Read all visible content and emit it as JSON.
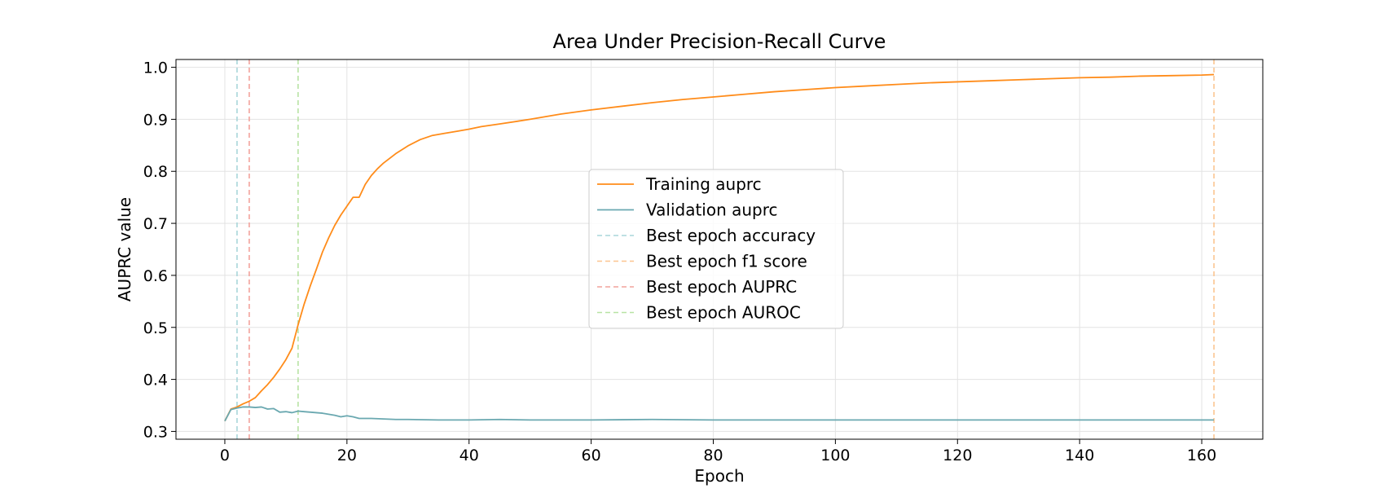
{
  "chart_data": {
    "type": "line",
    "title": "Area Under Precision-Recall Curve",
    "xlabel": "Epoch",
    "ylabel": "AUPRC value",
    "xlim": [
      -8,
      170
    ],
    "ylim": [
      0.285,
      1.015
    ],
    "xticks": [
      0,
      20,
      40,
      60,
      80,
      100,
      120,
      140,
      160
    ],
    "yticks": [
      0.3,
      0.4,
      0.5,
      0.6,
      0.7,
      0.8,
      0.9,
      1.0
    ],
    "grid": true,
    "legend_position": "center",
    "series": [
      {
        "name": "Training auprc",
        "color": "#ff8c1a",
        "style": "solid",
        "points": [
          [
            0,
            0.32
          ],
          [
            1,
            0.343
          ],
          [
            2,
            0.347
          ],
          [
            3,
            0.353
          ],
          [
            4,
            0.358
          ],
          [
            5,
            0.365
          ],
          [
            6,
            0.378
          ],
          [
            7,
            0.39
          ],
          [
            8,
            0.404
          ],
          [
            9,
            0.42
          ],
          [
            10,
            0.438
          ],
          [
            11,
            0.46
          ],
          [
            12,
            0.505
          ],
          [
            13,
            0.545
          ],
          [
            14,
            0.58
          ],
          [
            15,
            0.612
          ],
          [
            16,
            0.645
          ],
          [
            17,
            0.672
          ],
          [
            18,
            0.696
          ],
          [
            19,
            0.716
          ],
          [
            20,
            0.733
          ],
          [
            21,
            0.75
          ],
          [
            22,
            0.75
          ],
          [
            23,
            0.775
          ],
          [
            24,
            0.792
          ],
          [
            25,
            0.805
          ],
          [
            26,
            0.816
          ],
          [
            28,
            0.834
          ],
          [
            30,
            0.849
          ],
          [
            32,
            0.861
          ],
          [
            34,
            0.869
          ],
          [
            36,
            0.873
          ],
          [
            38,
            0.877
          ],
          [
            40,
            0.881
          ],
          [
            42,
            0.886
          ],
          [
            45,
            0.891
          ],
          [
            50,
            0.9
          ],
          [
            55,
            0.91
          ],
          [
            60,
            0.918
          ],
          [
            65,
            0.925
          ],
          [
            70,
            0.932
          ],
          [
            75,
            0.938
          ],
          [
            80,
            0.943
          ],
          [
            85,
            0.948
          ],
          [
            90,
            0.953
          ],
          [
            95,
            0.957
          ],
          [
            100,
            0.961
          ],
          [
            105,
            0.964
          ],
          [
            110,
            0.967
          ],
          [
            115,
            0.97
          ],
          [
            120,
            0.972
          ],
          [
            125,
            0.974
          ],
          [
            130,
            0.976
          ],
          [
            135,
            0.978
          ],
          [
            140,
            0.98
          ],
          [
            145,
            0.981
          ],
          [
            150,
            0.983
          ],
          [
            155,
            0.984
          ],
          [
            160,
            0.985
          ],
          [
            162,
            0.986
          ]
        ]
      },
      {
        "name": "Validation auprc",
        "color": "#6aa8b0",
        "style": "solid",
        "points": [
          [
            0,
            0.32
          ],
          [
            1,
            0.342
          ],
          [
            2,
            0.345
          ],
          [
            3,
            0.347
          ],
          [
            4,
            0.347
          ],
          [
            5,
            0.346
          ],
          [
            6,
            0.347
          ],
          [
            7,
            0.343
          ],
          [
            8,
            0.344
          ],
          [
            9,
            0.337
          ],
          [
            10,
            0.338
          ],
          [
            11,
            0.336
          ],
          [
            12,
            0.339
          ],
          [
            13,
            0.338
          ],
          [
            14,
            0.337
          ],
          [
            15,
            0.336
          ],
          [
            16,
            0.335
          ],
          [
            17,
            0.333
          ],
          [
            18,
            0.331
          ],
          [
            19,
            0.328
          ],
          [
            20,
            0.33
          ],
          [
            21,
            0.328
          ],
          [
            22,
            0.325
          ],
          [
            24,
            0.325
          ],
          [
            26,
            0.324
          ],
          [
            28,
            0.323
          ],
          [
            30,
            0.323
          ],
          [
            35,
            0.322
          ],
          [
            40,
            0.322
          ],
          [
            45,
            0.323
          ],
          [
            50,
            0.322
          ],
          [
            55,
            0.322
          ],
          [
            60,
            0.322
          ],
          [
            70,
            0.323
          ],
          [
            80,
            0.322
          ],
          [
            90,
            0.322
          ],
          [
            100,
            0.322
          ],
          [
            110,
            0.322
          ],
          [
            120,
            0.322
          ],
          [
            130,
            0.322
          ],
          [
            140,
            0.322
          ],
          [
            150,
            0.322
          ],
          [
            162,
            0.322
          ]
        ]
      }
    ],
    "vlines": [
      {
        "name": "Best epoch accuracy",
        "x": 2,
        "color": "#a9d6da",
        "style": "dashed"
      },
      {
        "name": "Best epoch f1 score",
        "x": 162,
        "color": "#fcc590",
        "style": "dashed"
      },
      {
        "name": "Best epoch AUPRC",
        "x": 4,
        "color": "#f2a29c",
        "style": "dashed"
      },
      {
        "name": "Best epoch AUROC",
        "x": 12,
        "color": "#b8e3a4",
        "style": "dashed"
      }
    ]
  }
}
